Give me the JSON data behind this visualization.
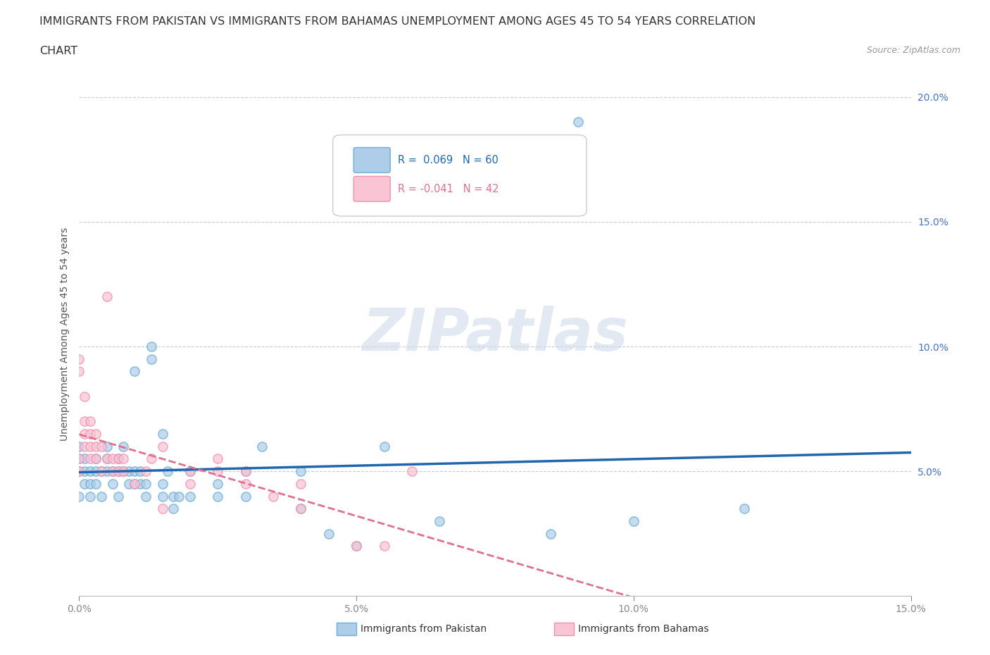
{
  "title_line1": "IMMIGRANTS FROM PAKISTAN VS IMMIGRANTS FROM BAHAMAS UNEMPLOYMENT AMONG AGES 45 TO 54 YEARS CORRELATION",
  "title_line2": "CHART",
  "source_text": "Source: ZipAtlas.com",
  "ylabel": "Unemployment Among Ages 45 to 54 years",
  "xlim": [
    0.0,
    0.15
  ],
  "ylim": [
    0.0,
    0.21
  ],
  "yticks": [
    0.0,
    0.05,
    0.1,
    0.15,
    0.2
  ],
  "ytick_labels": [
    "",
    "5.0%",
    "10.0%",
    "15.0%",
    "20.0%"
  ],
  "xticks": [
    0.0,
    0.05,
    0.1,
    0.15
  ],
  "xtick_labels": [
    "0.0%",
    "5.0%",
    "10.0%",
    "15.0%"
  ],
  "pakistan_color": "#6baed6",
  "pakistan_face_color": "#aecde8",
  "bahamas_color": "#f48fb1",
  "bahamas_face_color": "#f9c4d4",
  "pakistan_line_color": "#2166ac",
  "bahamas_line_color": "#e07090",
  "watermark": "ZIPatlas",
  "background_color": "#ffffff",
  "grid_color": "#cccccc",
  "pakistan_R": 0.069,
  "bahamas_R": -0.041,
  "pakistan_N": 60,
  "bahamas_N": 42,
  "pakistan_points": [
    [
      0.0,
      0.05
    ],
    [
      0.0,
      0.04
    ],
    [
      0.0,
      0.055
    ],
    [
      0.0,
      0.06
    ],
    [
      0.001,
      0.045
    ],
    [
      0.001,
      0.05
    ],
    [
      0.001,
      0.055
    ],
    [
      0.002,
      0.045
    ],
    [
      0.002,
      0.05
    ],
    [
      0.002,
      0.04
    ],
    [
      0.003,
      0.05
    ],
    [
      0.003,
      0.045
    ],
    [
      0.003,
      0.055
    ],
    [
      0.004,
      0.05
    ],
    [
      0.004,
      0.04
    ],
    [
      0.005,
      0.05
    ],
    [
      0.005,
      0.055
    ],
    [
      0.005,
      0.06
    ],
    [
      0.006,
      0.05
    ],
    [
      0.006,
      0.045
    ],
    [
      0.007,
      0.05
    ],
    [
      0.007,
      0.055
    ],
    [
      0.007,
      0.04
    ],
    [
      0.008,
      0.06
    ],
    [
      0.008,
      0.05
    ],
    [
      0.009,
      0.05
    ],
    [
      0.009,
      0.045
    ],
    [
      0.01,
      0.05
    ],
    [
      0.01,
      0.045
    ],
    [
      0.01,
      0.09
    ],
    [
      0.011,
      0.05
    ],
    [
      0.011,
      0.045
    ],
    [
      0.012,
      0.045
    ],
    [
      0.012,
      0.04
    ],
    [
      0.013,
      0.1
    ],
    [
      0.013,
      0.095
    ],
    [
      0.015,
      0.065
    ],
    [
      0.015,
      0.04
    ],
    [
      0.015,
      0.045
    ],
    [
      0.016,
      0.05
    ],
    [
      0.017,
      0.04
    ],
    [
      0.017,
      0.035
    ],
    [
      0.018,
      0.04
    ],
    [
      0.02,
      0.04
    ],
    [
      0.02,
      0.05
    ],
    [
      0.025,
      0.045
    ],
    [
      0.025,
      0.04
    ],
    [
      0.03,
      0.05
    ],
    [
      0.03,
      0.04
    ],
    [
      0.033,
      0.06
    ],
    [
      0.04,
      0.035
    ],
    [
      0.04,
      0.05
    ],
    [
      0.045,
      0.025
    ],
    [
      0.05,
      0.02
    ],
    [
      0.055,
      0.06
    ],
    [
      0.065,
      0.03
    ],
    [
      0.085,
      0.025
    ],
    [
      0.09,
      0.19
    ],
    [
      0.1,
      0.03
    ],
    [
      0.12,
      0.035
    ]
  ],
  "bahamas_points": [
    [
      0.0,
      0.05
    ],
    [
      0.0,
      0.055
    ],
    [
      0.0,
      0.09
    ],
    [
      0.0,
      0.095
    ],
    [
      0.001,
      0.06
    ],
    [
      0.001,
      0.065
    ],
    [
      0.001,
      0.07
    ],
    [
      0.001,
      0.08
    ],
    [
      0.002,
      0.055
    ],
    [
      0.002,
      0.06
    ],
    [
      0.002,
      0.065
    ],
    [
      0.002,
      0.07
    ],
    [
      0.003,
      0.055
    ],
    [
      0.003,
      0.06
    ],
    [
      0.003,
      0.065
    ],
    [
      0.004,
      0.05
    ],
    [
      0.004,
      0.06
    ],
    [
      0.005,
      0.12
    ],
    [
      0.005,
      0.055
    ],
    [
      0.006,
      0.05
    ],
    [
      0.006,
      0.055
    ],
    [
      0.007,
      0.05
    ],
    [
      0.007,
      0.055
    ],
    [
      0.008,
      0.05
    ],
    [
      0.008,
      0.055
    ],
    [
      0.01,
      0.045
    ],
    [
      0.012,
      0.05
    ],
    [
      0.013,
      0.055
    ],
    [
      0.015,
      0.06
    ],
    [
      0.015,
      0.035
    ],
    [
      0.02,
      0.05
    ],
    [
      0.02,
      0.045
    ],
    [
      0.025,
      0.055
    ],
    [
      0.025,
      0.05
    ],
    [
      0.03,
      0.05
    ],
    [
      0.03,
      0.045
    ],
    [
      0.035,
      0.04
    ],
    [
      0.04,
      0.045
    ],
    [
      0.04,
      0.035
    ],
    [
      0.05,
      0.02
    ],
    [
      0.055,
      0.02
    ],
    [
      0.06,
      0.05
    ]
  ]
}
